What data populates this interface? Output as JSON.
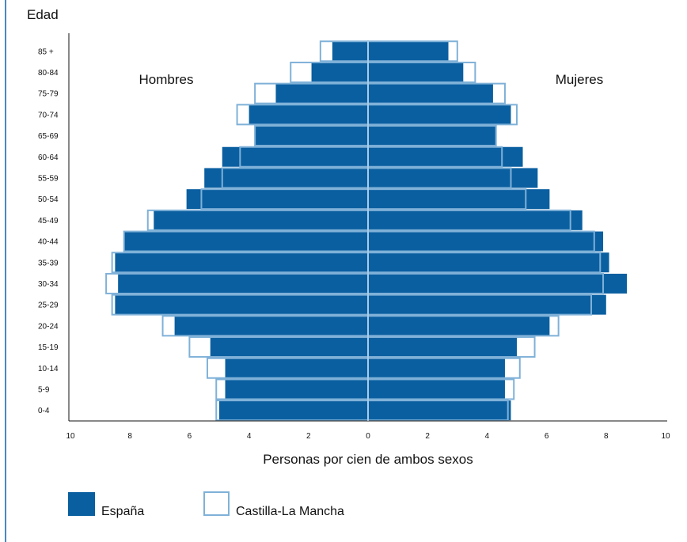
{
  "chart_data": {
    "type": "bar",
    "orientation": "horizontal",
    "layout": "population-pyramid",
    "ytitle": "Edad",
    "xlabel": "Personas por cien de ambos sexos",
    "xlim": [
      -10,
      10
    ],
    "xticks": [
      10,
      8,
      6,
      4,
      2,
      0,
      2,
      4,
      6,
      8,
      10
    ],
    "side_labels": {
      "left": "Hombres",
      "right": "Mujeres"
    },
    "categories": [
      "0-4",
      "5-9",
      "10-14",
      "15-19",
      "20-24",
      "25-29",
      "30-34",
      "35-39",
      "40-44",
      "45-49",
      "50-54",
      "55-59",
      "60-64",
      "65-69",
      "70-74",
      "75-79",
      "80-84",
      "85 +"
    ],
    "series": [
      {
        "name": "España",
        "style": "filled",
        "color": "#0a5fa0",
        "hombres": [
          5.0,
          4.8,
          4.8,
          5.3,
          6.5,
          8.5,
          8.4,
          8.5,
          8.2,
          7.2,
          6.1,
          5.5,
          4.9,
          3.8,
          4.0,
          3.1,
          1.9,
          1.2
        ],
        "mujeres": [
          4.8,
          4.6,
          4.6,
          5.0,
          6.1,
          8.0,
          8.7,
          8.1,
          7.9,
          7.2,
          6.1,
          5.7,
          5.2,
          4.3,
          4.8,
          4.2,
          3.2,
          2.7
        ]
      },
      {
        "name": "Castilla-La Mancha",
        "style": "outline",
        "color": "#7fb1d8",
        "hombres": [
          5.1,
          5.1,
          5.4,
          6.0,
          6.9,
          8.6,
          8.8,
          8.6,
          8.2,
          7.4,
          5.6,
          4.9,
          4.3,
          3.8,
          4.4,
          3.8,
          2.6,
          1.6
        ],
        "mujeres": [
          4.7,
          4.9,
          5.1,
          5.6,
          6.4,
          7.5,
          7.9,
          7.8,
          7.6,
          6.8,
          5.3,
          4.8,
          4.5,
          4.3,
          5.0,
          4.6,
          3.6,
          3.0
        ]
      }
    ],
    "legend": {
      "placement": "bottom-left"
    }
  }
}
